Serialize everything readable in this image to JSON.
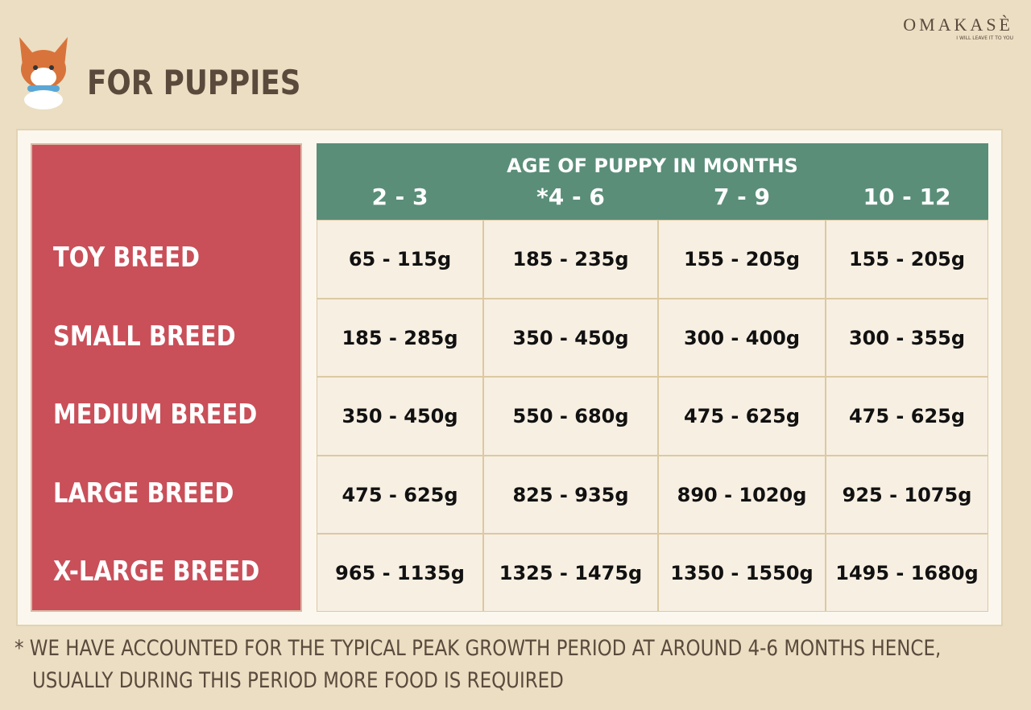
{
  "header": {
    "title": "FOR PUPPIES",
    "brand": "OMAKASÈ",
    "tagline": "I WILL LEAVE IT TO YOU"
  },
  "table": {
    "caption": "AGE OF PUPPY IN MONTHS",
    "columns": [
      "2 - 3",
      "*4 - 6",
      "7 - 9",
      "10 - 12"
    ],
    "rows": [
      {
        "label": "TOY BREED",
        "cells": [
          "65 - 115g",
          "185 - 235g",
          "155 - 205g",
          "155 - 205g"
        ]
      },
      {
        "label": "SMALL BREED",
        "cells": [
          "185 - 285g",
          "350 - 450g",
          "300 - 400g",
          "300 - 355g"
        ]
      },
      {
        "label": "MEDIUM BREED",
        "cells": [
          "350 - 450g",
          "550 - 680g",
          "475 - 625g",
          "475 - 625g"
        ]
      },
      {
        "label": "LARGE BREED",
        "cells": [
          "475 - 625g",
          "825 - 935g",
          "890 - 1020g",
          "925 - 1075g"
        ]
      },
      {
        "label": "X-LARGE BREED",
        "cells": [
          "965 - 1135g",
          "1325 - 1475g",
          "1350 - 1550g",
          "1495 - 1680g"
        ]
      }
    ]
  },
  "footnote": [
    "* WE HAVE ACCOUNTED FOR THE TYPICAL PEAK GROWTH PERIOD AT AROUND 4-6 MONTHS HENCE,",
    "USUALLY DURING THIS PERIOD MORE FOOD IS REQUIRED"
  ]
}
